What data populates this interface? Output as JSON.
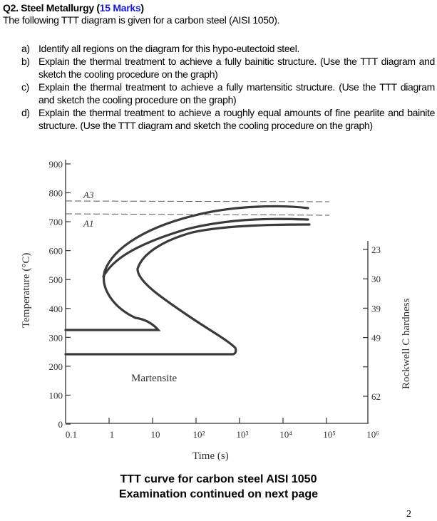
{
  "question": {
    "title_prefix": "Q2. Steel Metallurgy (",
    "marks": "15 Marks",
    "title_suffix": ")",
    "intro": "The following TTT diagram is given for a carbon steel (AISI 1050).",
    "items": [
      {
        "label": "a)",
        "text": "Identify all regions on the diagram for this hypo-eutectoid steel."
      },
      {
        "label": "b)",
        "text": "Explain the thermal treatment to achieve a fully bainitic structure. (Use the TTT diagram and sketch the cooling procedure on the graph)"
      },
      {
        "label": "c)",
        "text": "Explain the thermal treatment to achieve a fully martensitic structure. (Use the TTT diagram and sketch the cooling procedure on the graph)"
      },
      {
        "label": "d)",
        "text": "Explain the thermal treatment to achieve a roughly equal amounts of fine pearlite and bainite structure. (Use the TTT diagram and sketch the cooling procedure on the graph)"
      }
    ]
  },
  "diagram": {
    "ylabel": "Temperature (°C)",
    "xlabel": "Time (s)",
    "y2label": "Rockwell C hardness",
    "a3": "A3",
    "a1": "A1",
    "region_label": "Martensite",
    "yticks": [
      "900",
      "800",
      "700",
      "600",
      "500",
      "400",
      "300",
      "200",
      "100",
      "0"
    ],
    "xticks": [
      "0.1",
      "1",
      "10",
      "10²",
      "10³",
      "10⁴",
      "10⁵",
      "10⁶"
    ],
    "hardness_ticks": [
      "23",
      "30",
      "39",
      "49",
      "",
      "62"
    ]
  },
  "chart_data": {
    "type": "line",
    "xscale": "log",
    "xlim": [
      0.1,
      1000000
    ],
    "ylim": [
      0,
      900
    ],
    "xlabel": "Time (s)",
    "ylabel": "Temperature (°C)",
    "y2label": "Rockwell C hardness",
    "reference_lines": [
      {
        "name": "A3",
        "y": 770
      },
      {
        "name": "A1",
        "y": 727
      }
    ],
    "annotations": [
      "Martensite"
    ]
  },
  "footer": {
    "caption1": "TTT curve for carbon steel AISI 1050",
    "caption2": "Examination continued on next page",
    "page_number": "2"
  }
}
